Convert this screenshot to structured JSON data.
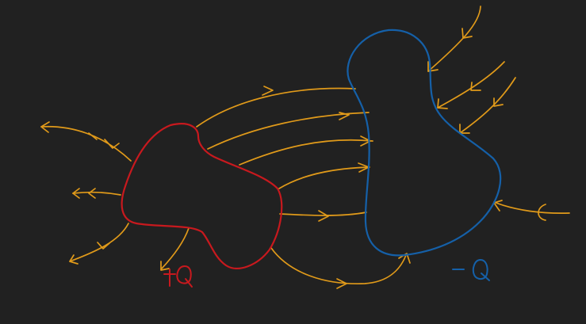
{
  "diagram": {
    "colors": {
      "background": "#212121",
      "positive": "#c8191e",
      "negative": "#1560a8",
      "field": "#e09a1a"
    },
    "labels": {
      "positive_charge": "+Q",
      "negative_charge": "-Q"
    }
  }
}
